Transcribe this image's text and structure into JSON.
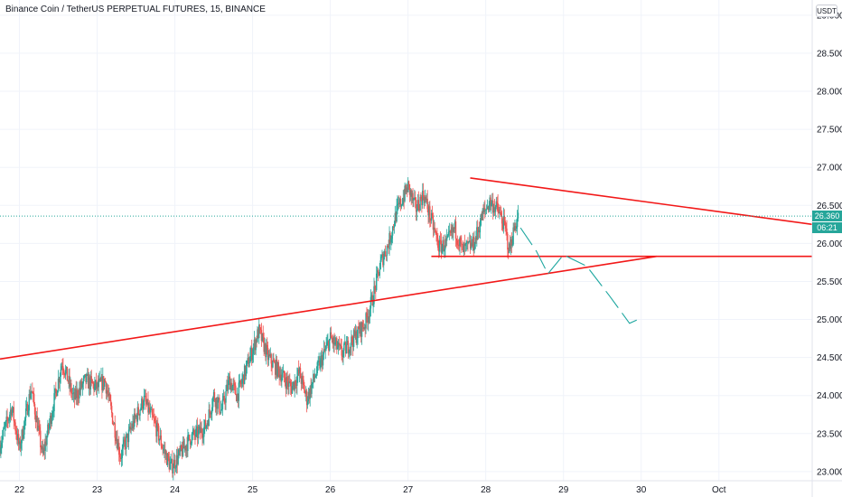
{
  "header": {
    "title": "Binance Coin / TetherUS PERPETUAL FUTURES, 15, BINANCE",
    "currency": "USDT"
  },
  "price_tag": {
    "price": "26.360",
    "countdown": "06:21"
  },
  "colors": {
    "up": "#26a69a",
    "down": "#ef5350",
    "trendline": "#f21818",
    "projection": "#1fa7a0"
  },
  "chart_data": {
    "type": "candlestick",
    "title": "Binance Coin / TetherUS PERPETUAL FUTURES, 15, BINANCE",
    "x": {
      "ticks": [
        {
          "day": 22,
          "label": "22"
        },
        {
          "day": 23,
          "label": "23"
        },
        {
          "day": 24,
          "label": "24"
        },
        {
          "day": 25,
          "label": "25"
        },
        {
          "day": 26,
          "label": "26"
        },
        {
          "day": 27,
          "label": "27"
        },
        {
          "day": 28,
          "label": "28"
        },
        {
          "day": 29,
          "label": "29"
        },
        {
          "day": 30,
          "label": "30"
        },
        {
          "day": 31,
          "label": "Oct"
        }
      ],
      "range": [
        21.75,
        32.2
      ]
    },
    "y": {
      "ticks": [
        "23.000",
        "23.500",
        "24.000",
        "24.500",
        "25.000",
        "25.500",
        "26.000",
        "26.500",
        "27.000",
        "27.500",
        "28.000",
        "28.500",
        "29.000"
      ],
      "range": [
        22.88,
        29.2
      ]
    },
    "grid": true,
    "last_price": 26.36,
    "price_path": [
      [
        21.75,
        23.35
      ],
      [
        21.9,
        23.85
      ],
      [
        22.0,
        23.3
      ],
      [
        22.15,
        24.1
      ],
      [
        22.3,
        23.2
      ],
      [
        22.45,
        23.95
      ],
      [
        22.55,
        24.45
      ],
      [
        22.7,
        23.95
      ],
      [
        22.85,
        24.2
      ],
      [
        23.0,
        24.1
      ],
      [
        23.1,
        24.2
      ],
      [
        23.2,
        23.7
      ],
      [
        23.3,
        23.2
      ],
      [
        23.45,
        23.6
      ],
      [
        23.6,
        23.95
      ],
      [
        23.75,
        23.6
      ],
      [
        23.85,
        23.3
      ],
      [
        23.95,
        23.05
      ],
      [
        24.05,
        23.2
      ],
      [
        24.2,
        23.45
      ],
      [
        24.3,
        23.5
      ],
      [
        24.4,
        23.6
      ],
      [
        24.5,
        24.0
      ],
      [
        24.6,
        23.8
      ],
      [
        24.7,
        24.2
      ],
      [
        24.8,
        24.0
      ],
      [
        24.9,
        24.3
      ],
      [
        25.0,
        24.6
      ],
      [
        25.08,
        24.85
      ],
      [
        25.2,
        24.5
      ],
      [
        25.35,
        24.3
      ],
      [
        25.5,
        24.1
      ],
      [
        25.6,
        24.3
      ],
      [
        25.7,
        23.95
      ],
      [
        25.8,
        24.25
      ],
      [
        25.9,
        24.5
      ],
      [
        26.0,
        24.75
      ],
      [
        26.15,
        24.55
      ],
      [
        26.3,
        24.75
      ],
      [
        26.45,
        24.95
      ],
      [
        26.55,
        25.3
      ],
      [
        26.65,
        25.75
      ],
      [
        26.75,
        26.0
      ],
      [
        26.85,
        26.4
      ],
      [
        27.0,
        26.75
      ],
      [
        27.1,
        26.45
      ],
      [
        27.2,
        26.65
      ],
      [
        27.3,
        26.3
      ],
      [
        27.4,
        25.95
      ],
      [
        27.5,
        26.0
      ],
      [
        27.6,
        26.2
      ],
      [
        27.7,
        25.9
      ],
      [
        27.85,
        26.0
      ],
      [
        27.95,
        26.35
      ],
      [
        28.05,
        26.55
      ],
      [
        28.15,
        26.45
      ],
      [
        28.25,
        26.2
      ],
      [
        28.3,
        25.9
      ],
      [
        28.38,
        26.25
      ],
      [
        28.42,
        26.36
      ]
    ],
    "drawings": [
      {
        "type": "trendline",
        "from": [
          27.8,
          26.86
        ],
        "to": [
          32.2,
          26.25
        ]
      },
      {
        "type": "trendline",
        "from": [
          21.75,
          24.48
        ],
        "to": [
          30.2,
          25.83
        ]
      },
      {
        "type": "horizontal_segment",
        "from": [
          27.3,
          25.83
        ],
        "to": [
          32.2,
          25.83
        ]
      }
    ],
    "projection_path": [
      [
        28.45,
        26.2
      ],
      [
        28.65,
        25.9
      ],
      [
        28.8,
        25.6
      ],
      [
        29.0,
        25.85
      ],
      [
        29.3,
        25.7
      ],
      [
        29.6,
        25.3
      ],
      [
        29.85,
        24.95
      ],
      [
        30.0,
        25.02
      ]
    ]
  }
}
